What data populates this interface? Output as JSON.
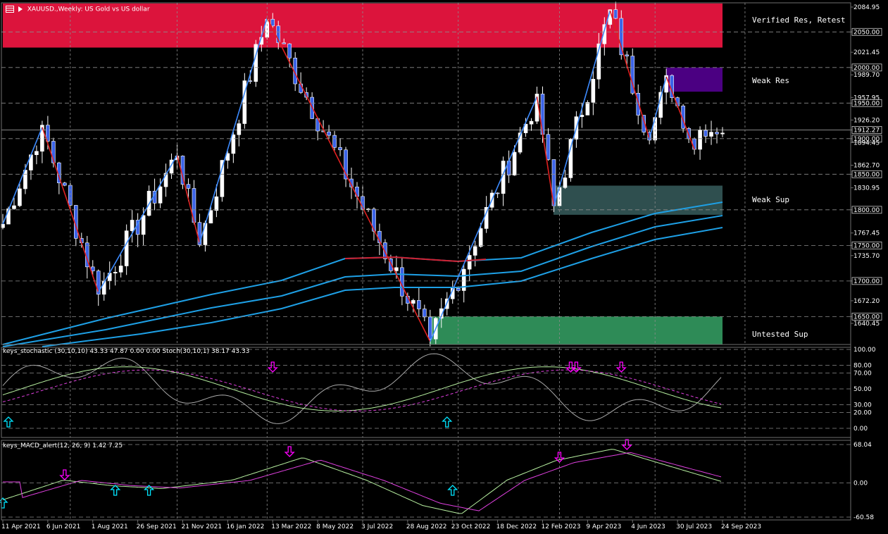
{
  "header": {
    "symbol_icon": "chart-table-icon",
    "title": "XAUUSD.,Weekly: US Gold vs US dollar"
  },
  "main_panel": {
    "price_labels": [
      "2084.95",
      "2050.00",
      "2021.45",
      "2000.00",
      "1989.70",
      "1957.95",
      "1950.00",
      "1926.20",
      "1912.27",
      "1900.00",
      "1894.45",
      "1862.70",
      "1850.00",
      "1830.95",
      "1800.00",
      "1767.45",
      "1750.00",
      "1735.70",
      "1700.00",
      "1672.20",
      "1650.00",
      "1640.45"
    ],
    "boxed_labels": [
      "2050.00",
      "2000.00",
      "1950.00",
      "1912.27",
      "1900.00",
      "1850.00",
      "1800.00",
      "1750.00",
      "1700.00",
      "1650.00"
    ],
    "zones": [
      {
        "name": "Verified Res, Retest",
        "color": "#DC143C"
      },
      {
        "name": "Weak Res",
        "color": "#4B0082"
      },
      {
        "name": "Weak Sup",
        "color": "#2F4F4F"
      },
      {
        "name": "Untested Sup",
        "color": "#2E8B57"
      }
    ],
    "chart_data": {
      "type": "candlestick",
      "symbol": "XAUUSD.",
      "timeframe": "Weekly",
      "ylim": [
        1610,
        2095
      ],
      "zigzag_pivots": [
        {
          "date": "2021-04-11",
          "price": 1780
        },
        {
          "date": "2021-05-30",
          "price": 1916
        },
        {
          "date": "2021-08-08",
          "price": 1684
        },
        {
          "date": "2021-11-14",
          "price": 1877
        },
        {
          "date": "2021-12-12",
          "price": 1753
        },
        {
          "date": "2022-03-06",
          "price": 2070
        },
        {
          "date": "2022-09-25",
          "price": 1615
        },
        {
          "date": "2023-02-05",
          "price": 1959
        },
        {
          "date": "2023-02-26",
          "price": 1805
        },
        {
          "date": "2023-05-07",
          "price": 2080
        },
        {
          "date": "2023-06-25",
          "price": 1900
        },
        {
          "date": "2023-07-16",
          "price": 1987
        },
        {
          "date": "2023-08-20",
          "price": 1885
        }
      ],
      "last_price": 1912.27
    }
  },
  "stoch_panel": {
    "title": "keys_stochastic (30,10,10) 43.33 47.87 0.00 0.00 Stoch(30,10,1) 38.17 43.33",
    "levels": [
      "100.00",
      "80.00",
      "70.00",
      "50.00",
      "30.00",
      "20.00",
      "0.00"
    ],
    "signals": [
      {
        "type": "up",
        "date": "2021-04-18"
      },
      {
        "type": "down",
        "date": "2022-03-13"
      },
      {
        "type": "up",
        "date": "2022-10-16"
      },
      {
        "type": "down",
        "date": "2023-03-19"
      },
      {
        "type": "down",
        "date": "2023-03-26"
      },
      {
        "type": "down",
        "date": "2023-05-21"
      }
    ]
  },
  "macd_panel": {
    "title": "keys_MACD_alert(12, 26, 9) 1.42 7.25",
    "levels": [
      "68.04",
      "0.00",
      "-60.58"
    ],
    "signals": [
      {
        "type": "up",
        "date": "2021-04-11"
      },
      {
        "type": "down",
        "date": "2021-06-27"
      },
      {
        "type": "up",
        "date": "2021-08-29"
      },
      {
        "type": "up",
        "date": "2021-10-10"
      },
      {
        "type": "down",
        "date": "2022-04-03"
      },
      {
        "type": "up",
        "date": "2022-10-23"
      },
      {
        "type": "down",
        "date": "2023-03-05"
      },
      {
        "type": "down",
        "date": "2023-05-28"
      }
    ]
  },
  "time_axis": [
    "11 Apr 2021",
    "6 Jun 2021",
    "1 Aug 2021",
    "26 Sep 2021",
    "21 Nov 2021",
    "16 Jan 2022",
    "13 Mar 2022",
    "8 May 2022",
    "3 Jul 2022",
    "28 Aug 2022",
    "23 Oct 2022",
    "18 Dec 2022",
    "12 Feb 2023",
    "9 Apr 2023",
    "4 Jun 2023",
    "30 Jul 2023",
    "24 Sep 2023"
  ],
  "colors": {
    "bull": "#FFFFFF",
    "bear": "#3B63E8",
    "zigzag_up": "#3D8BFF",
    "zigzag_down": "#E02020",
    "ma": "#1EA0E6",
    "grid": "#8C8C8C",
    "signal_down": "#FF00FF",
    "signal_up": "#00E5FF"
  }
}
